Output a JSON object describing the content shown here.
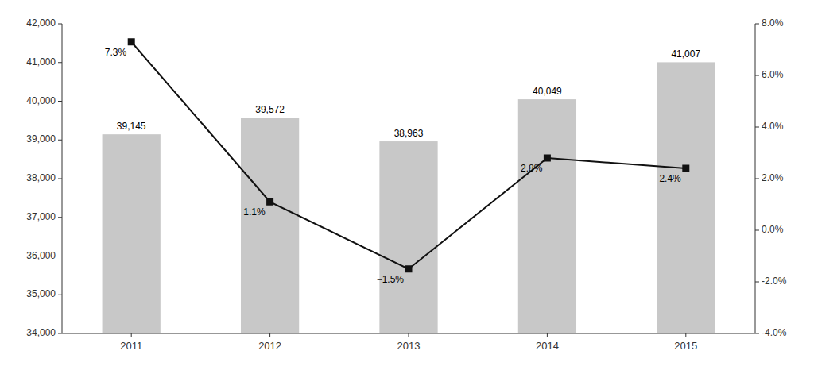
{
  "chart_data": {
    "type": "bar",
    "categories": [
      "2011",
      "2012",
      "2013",
      "2014",
      "2015"
    ],
    "series": [
      {
        "type": "bar",
        "color": "#c8c8c8",
        "values": [
          39145,
          39572,
          38963,
          40049,
          41007
        ],
        "value_labels": [
          "39,145",
          "39,572",
          "38,963",
          "40,049",
          "41,007"
        ]
      },
      {
        "type": "line",
        "axis": "y2",
        "color": "#111111",
        "marker": "square",
        "values": [
          7.3,
          1.1,
          -1.5,
          2.8,
          2.4
        ],
        "value_labels": [
          "7.3%",
          "1.1%",
          "−1.5%",
          "2.8%",
          "2.4%"
        ]
      }
    ],
    "ylim": [
      34000,
      42000
    ],
    "yticks": [
      {
        "value": 34000,
        "label": "34,000"
      },
      {
        "value": 35000,
        "label": "35,000"
      },
      {
        "value": 36000,
        "label": "36,000"
      },
      {
        "value": 37000,
        "label": "37,000"
      },
      {
        "value": 38000,
        "label": "38,000"
      },
      {
        "value": 39000,
        "label": "39,000"
      },
      {
        "value": 40000,
        "label": "40,000"
      },
      {
        "value": 41000,
        "label": "41,000"
      },
      {
        "value": 42000,
        "label": "42,000"
      }
    ],
    "y2lim": [
      -4.0,
      8.0
    ],
    "y2ticks": [
      {
        "value": -4.0,
        "label": "-4.0%"
      },
      {
        "value": -2.0,
        "label": "-2.0%"
      },
      {
        "value": 0.0,
        "label": "0.0%"
      },
      {
        "value": 2.0,
        "label": "2.0%"
      },
      {
        "value": 4.0,
        "label": "4.0%"
      },
      {
        "value": 6.0,
        "label": "6.0%"
      },
      {
        "value": 8.0,
        "label": "8.0%"
      }
    ],
    "data_labels": true,
    "grid": false
  }
}
